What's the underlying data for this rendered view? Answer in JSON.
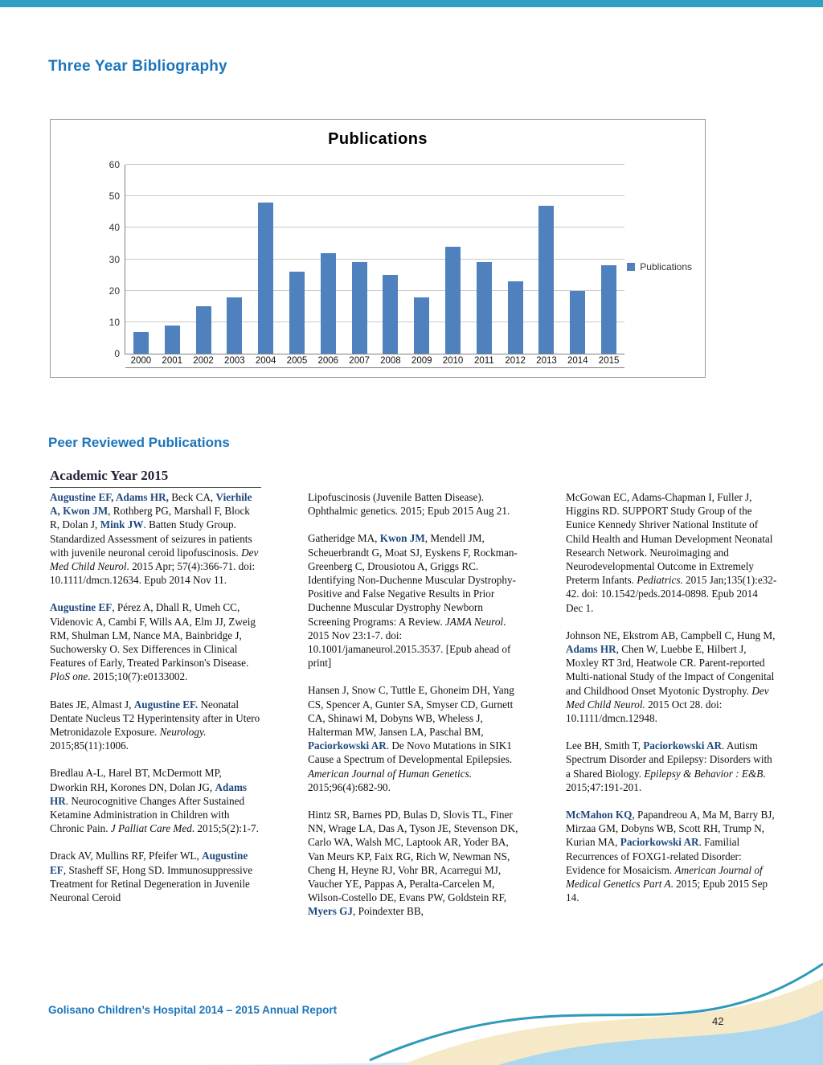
{
  "page": {
    "title": "Three Year Bibliography",
    "section_heading": "Peer Reviewed Publications",
    "subsection_heading": "Academic Year 2015",
    "footer_text": "Golisano Children’s Hospital 2014 – 2015 Annual Report",
    "page_number": "42"
  },
  "colors": {
    "accent_blue": "#1c75bb",
    "author_blue": "#1f497d",
    "bar_blue": "#4e81bd",
    "top_bar_teal": "#2f9fc6"
  },
  "chart_data": {
    "type": "bar",
    "title": "Publications",
    "categories": [
      "2000",
      "2001",
      "2002",
      "2003",
      "2004",
      "2005",
      "2006",
      "2007",
      "2008",
      "2009",
      "2010",
      "2011",
      "2012",
      "2013",
      "2014",
      "2015"
    ],
    "values": [
      7,
      9,
      15,
      18,
      48,
      26,
      32,
      29,
      25,
      18,
      34,
      29,
      23,
      47,
      20,
      28
    ],
    "xlabel": "",
    "ylabel": "",
    "ylim": [
      0,
      60
    ],
    "yticks": [
      0,
      10,
      20,
      30,
      40,
      50,
      60
    ],
    "grid": true,
    "legend_label": "Publications",
    "legend_position": "right",
    "bar_color": "#4e81bd"
  },
  "columns": [
    {
      "citations": [
        {
          "segments": [
            {
              "t": "Augustine EF, Adams HR,",
              "s": "b"
            },
            {
              "t": " Beck CA, ",
              "s": "n"
            },
            {
              "t": "Vierhile A, Kwon JM",
              "s": "b"
            },
            {
              "t": ", Rothberg PG, Marshall F, Block R, Dolan J, ",
              "s": "n"
            },
            {
              "t": "Mink JW",
              "s": "b"
            },
            {
              "t": ". Batten Study Group. Standardized Assessment of seizures in patients with juvenile neuronal ceroid lipofuscinosis. ",
              "s": "n"
            },
            {
              "t": "Dev Med Child Neurol",
              "s": "i"
            },
            {
              "t": ". 2015 Apr; 57(4):366-71. doi: 10.1111/dmcn.12634. Epub 2014 Nov 11.",
              "s": "n"
            }
          ]
        },
        {
          "segments": [
            {
              "t": "Augustine EF",
              "s": "b"
            },
            {
              "t": ", Pérez A, Dhall R, Umeh CC, Videnovic A, Cambi F, Wills AA, Elm JJ, Zweig RM, Shulman LM, Nance MA, Bainbridge J, Suchowersky O. Sex Differences in Clinical Features of Early, Treated Parkinson's Disease. ",
              "s": "n"
            },
            {
              "t": "PloS one",
              "s": "i"
            },
            {
              "t": ". 2015;10(7):e0133002.",
              "s": "n"
            }
          ]
        },
        {
          "segments": [
            {
              "t": "Bates JE, Almast J, ",
              "s": "n"
            },
            {
              "t": "Augustine EF.",
              "s": "b"
            },
            {
              "t": " Neonatal Dentate Nucleus T2 Hyperintensity after in Utero Metronidazole Exposure. ",
              "s": "n"
            },
            {
              "t": "Neurology.",
              "s": "i"
            },
            {
              "t": " 2015;85(11):1006.",
              "s": "n"
            }
          ]
        },
        {
          "segments": [
            {
              "t": "Bredlau A-L, Harel BT, McDermott MP, Dworkin RH, Korones DN, Dolan JG, ",
              "s": "n"
            },
            {
              "t": "Adams HR",
              "s": "b"
            },
            {
              "t": ".  Neurocognitive Changes After Sustained Ketamine Administration in Children with Chronic Pain. ",
              "s": "n"
            },
            {
              "t": "J Palliat Care Med",
              "s": "i"
            },
            {
              "t": ". 2015;5(2):1-7.",
              "s": "n"
            }
          ]
        },
        {
          "segments": [
            {
              "t": "Drack AV, Mullins RF, Pfeifer WL, ",
              "s": "n"
            },
            {
              "t": "Augustine EF",
              "s": "b"
            },
            {
              "t": ", Stasheff SF, Hong SD. Immunosuppressive Treatment for Retinal Degeneration in Juvenile Neuronal Ceroid",
              "s": "n"
            }
          ]
        }
      ]
    },
    {
      "citations": [
        {
          "segments": [
            {
              "t": "Lipofuscinosis (Juvenile Batten Disease). Ophthalmic genetics. 2015; Epub 2015 Aug 21.",
              "s": "n"
            }
          ]
        },
        {
          "segments": [
            {
              "t": "Gatheridge MA, ",
              "s": "n"
            },
            {
              "t": "Kwon JM",
              "s": "b"
            },
            {
              "t": ", Mendell JM, Scheuerbrandt G, Moat SJ, Eyskens F, Rockman-Greenberg C, Drousiotou A, Griggs RC. Identifying Non-Duchenne Muscular Dystrophy-Positive and False Negative Results in Prior Duchenne Muscular Dystrophy Newborn Screening Programs: A Review. ",
              "s": "n"
            },
            {
              "t": "JAMA Neurol",
              "s": "i"
            },
            {
              "t": ". 2015 Nov 23:1-7. doi: 10.1001/jamaneurol.2015.3537. [Epub ahead of print]",
              "s": "n"
            }
          ]
        },
        {
          "segments": [
            {
              "t": "Hansen J, Snow C, Tuttle E, Ghoneim DH, Yang CS, Spencer A, Gunter SA, Smyser CD, Gurnett CA, Shinawi M, Dobyns WB, Wheless J, Halterman MW, Jansen LA, Paschal BM, ",
              "s": "n"
            },
            {
              "t": "Paciorkowski AR",
              "s": "b"
            },
            {
              "t": ". De Novo Mutations in SIK1 Cause a Spectrum of Developmental Epilepsies. ",
              "s": "n"
            },
            {
              "t": "American Journal of Human Genetics.",
              "s": "i"
            },
            {
              "t": " 2015;96(4):682-90.",
              "s": "n"
            }
          ]
        },
        {
          "segments": [
            {
              "t": "Hintz SR, Barnes PD, Bulas D, Slovis TL, Finer NN, Wrage LA, Das A, Tyson JE, Stevenson DK, Carlo WA, Walsh MC, Laptook AR, Yoder BA, Van Meurs KP, Faix RG, Rich W, Newman NS, Cheng H, Heyne RJ, Vohr BR, Acarregui MJ, Vaucher YE, Pappas A, Peralta-Carcelen M, Wilson-Costello DE, Evans PW, Goldstein RF, ",
              "s": "n"
            },
            {
              "t": "Myers GJ",
              "s": "b"
            },
            {
              "t": ", Poindexter BB,",
              "s": "n"
            }
          ]
        }
      ]
    },
    {
      "citations": [
        {
          "segments": [
            {
              "t": "McGowan EC, Adams-Chapman I, Fuller J, Higgins RD. SUPPORT Study Group of the Eunice Kennedy Shriver National Institute of Child Health and Human Development Neonatal Research Network. Neuroimaging and Neurodevelopmental Outcome in Extremely Preterm Infants. ",
              "s": "n"
            },
            {
              "t": "Pediatrics.",
              "s": "i"
            },
            {
              "t": " 2015 Jan;135(1):e32-42. doi: 10.1542/peds.2014-0898. Epub 2014 Dec 1.",
              "s": "n"
            }
          ]
        },
        {
          "segments": [
            {
              "t": "Johnson NE, Ekstrom AB, Campbell C, Hung M, ",
              "s": "n"
            },
            {
              "t": "Adams HR",
              "s": "b"
            },
            {
              "t": ", Chen W, Luebbe E, Hilbert J, Moxley RT 3rd, Heatwole CR. Parent-reported Multi-national Study of the Impact of Congenital and Childhood Onset Myotonic Dystrophy. ",
              "s": "n"
            },
            {
              "t": "Dev Med Child Neurol.",
              "s": "i"
            },
            {
              "t": " 2015 Oct 28. doi: 10.1111/dmcn.12948.",
              "s": "n"
            }
          ]
        },
        {
          "segments": [
            {
              "t": "Lee BH, Smith T, ",
              "s": "n"
            },
            {
              "t": "Paciorkowski AR",
              "s": "b"
            },
            {
              "t": ". Autism Spectrum Disorder and Epilepsy: Disorders with a Shared Biology. ",
              "s": "n"
            },
            {
              "t": "Epilepsy & Behavior : E&B",
              "s": "i"
            },
            {
              "t": ". 2015;47:191-201.",
              "s": "n"
            }
          ]
        },
        {
          "segments": [
            {
              "t": "McMahon KQ",
              "s": "b"
            },
            {
              "t": ", Papandreou A, Ma M, Barry BJ, Mirzaa GM, Dobyns WB, Scott RH, Trump N, Kurian  MA, ",
              "s": "n"
            },
            {
              "t": "Paciorkowski AR",
              "s": "b"
            },
            {
              "t": ". Familial Recurrences of FOXG1-related Disorder: Evidence for Mosaicism.  ",
              "s": "n"
            },
            {
              "t": "American Journal of Medical Genetics Part A",
              "s": "i"
            },
            {
              "t": ". 2015; Epub 2015 Sep 14.",
              "s": "n"
            }
          ]
        }
      ]
    }
  ]
}
